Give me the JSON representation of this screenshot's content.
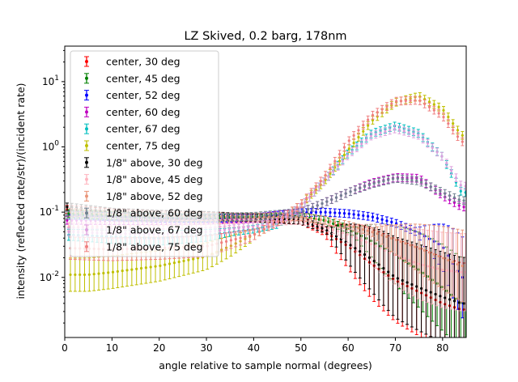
{
  "chart_data": {
    "type": "scatter",
    "title": "LZ Skived, 0.2 barg, 178nm",
    "xlabel": "angle relative to sample normal (degrees)",
    "ylabel": "intensity (reflected rate/str)/(incident rate)",
    "xlim": [
      0,
      85
    ],
    "ylim": [
      0.0012,
      35
    ],
    "yscale": "log",
    "x_ticks": [
      "0",
      "10",
      "20",
      "30",
      "40",
      "50",
      "60",
      "70",
      "80"
    ],
    "y_ticks": [
      "10^-2",
      "10^-1",
      "10^0",
      "10^1"
    ],
    "grid": false,
    "legend_position": "upper-left",
    "series": [
      {
        "name": "center, 30 deg",
        "color": "#ff0000",
        "points": [
          [
            1,
            0.11
          ],
          [
            10,
            0.098
          ],
          [
            20,
            0.092
          ],
          [
            30,
            0.088
          ],
          [
            40,
            0.08
          ],
          [
            45,
            0.08
          ],
          [
            50,
            0.075
          ],
          [
            55,
            0.05
          ],
          [
            60,
            0.03
          ],
          [
            65,
            0.016
          ],
          [
            70,
            0.009
          ],
          [
            75,
            0.006
          ],
          [
            80,
            0.004
          ],
          [
            84,
            0.0032
          ]
        ]
      },
      {
        "name": "center, 45 deg",
        "color": "#008000",
        "points": [
          [
            1,
            0.095
          ],
          [
            10,
            0.088
          ],
          [
            20,
            0.083
          ],
          [
            30,
            0.081
          ],
          [
            40,
            0.082
          ],
          [
            45,
            0.085
          ],
          [
            50,
            0.085
          ],
          [
            55,
            0.075
          ],
          [
            60,
            0.055
          ],
          [
            65,
            0.036
          ],
          [
            70,
            0.022
          ],
          [
            75,
            0.013
          ],
          [
            80,
            0.007
          ],
          [
            84,
            0.004
          ]
        ]
      },
      {
        "name": "center, 52 deg",
        "color": "#0000ff",
        "points": [
          [
            1,
            0.09
          ],
          [
            10,
            0.085
          ],
          [
            20,
            0.08
          ],
          [
            30,
            0.08
          ],
          [
            40,
            0.082
          ],
          [
            50,
            0.098
          ],
          [
            55,
            0.1
          ],
          [
            60,
            0.095
          ],
          [
            65,
            0.085
          ],
          [
            70,
            0.068
          ],
          [
            75,
            0.048
          ],
          [
            80,
            0.03
          ],
          [
            84,
            0.01
          ]
        ]
      },
      {
        "name": "center, 60 deg",
        "color": "#c000c0",
        "points": [
          [
            1,
            0.075
          ],
          [
            10,
            0.074
          ],
          [
            20,
            0.074
          ],
          [
            30,
            0.075
          ],
          [
            40,
            0.08
          ],
          [
            50,
            0.1
          ],
          [
            55,
            0.14
          ],
          [
            60,
            0.2
          ],
          [
            65,
            0.28
          ],
          [
            70,
            0.34
          ],
          [
            75,
            0.33
          ],
          [
            80,
            0.18
          ],
          [
            84,
            0.12
          ]
        ]
      },
      {
        "name": "center, 67 deg",
        "color": "#00bfbf",
        "points": [
          [
            1,
            0.045
          ],
          [
            10,
            0.042
          ],
          [
            20,
            0.04
          ],
          [
            30,
            0.044
          ],
          [
            40,
            0.055
          ],
          [
            45,
            0.065
          ],
          [
            50,
            0.12
          ],
          [
            55,
            0.3
          ],
          [
            60,
            0.8
          ],
          [
            65,
            1.6
          ],
          [
            70,
            2.1
          ],
          [
            75,
            1.6
          ],
          [
            80,
            0.7
          ],
          [
            84,
            0.2
          ]
        ]
      },
      {
        "name": "center, 75 deg",
        "color": "#bfbf00",
        "points": [
          [
            1,
            0.011
          ],
          [
            5,
            0.011
          ],
          [
            10,
            0.012
          ],
          [
            20,
            0.015
          ],
          [
            30,
            0.021
          ],
          [
            35,
            0.03
          ],
          [
            40,
            0.045
          ],
          [
            45,
            0.07
          ],
          [
            50,
            0.13
          ],
          [
            55,
            0.3
          ],
          [
            60,
            0.9
          ],
          [
            65,
            2.5
          ],
          [
            70,
            4.8
          ],
          [
            75,
            6
          ],
          [
            80,
            3.8
          ],
          [
            84,
            1.5
          ]
        ]
      },
      {
        "name": "1/8\" above, 30 deg",
        "color": "#000000",
        "points": [
          [
            1,
            0.12
          ],
          [
            10,
            0.1
          ],
          [
            20,
            0.093
          ],
          [
            30,
            0.089
          ],
          [
            40,
            0.082
          ],
          [
            45,
            0.078
          ],
          [
            50,
            0.075
          ],
          [
            55,
            0.055
          ],
          [
            60,
            0.033
          ],
          [
            65,
            0.019
          ],
          [
            70,
            0.01
          ],
          [
            75,
            0.007
          ],
          [
            80,
            0.005
          ],
          [
            84,
            0.004
          ]
        ]
      },
      {
        "name": "1/8\" above, 45 deg",
        "color": "#ffb6c1",
        "points": [
          [
            1,
            0.06
          ],
          [
            10,
            0.06
          ],
          [
            20,
            0.063
          ],
          [
            30,
            0.066
          ],
          [
            40,
            0.07
          ],
          [
            50,
            0.075
          ],
          [
            55,
            0.06
          ],
          [
            60,
            0.045
          ],
          [
            65,
            0.032
          ],
          [
            70,
            0.022
          ],
          [
            75,
            0.016
          ],
          [
            80,
            0.013
          ],
          [
            84,
            0.012
          ]
        ]
      },
      {
        "name": "1/8\" above, 52 deg",
        "color": "#e9967a",
        "points": [
          [
            1,
            0.1
          ],
          [
            10,
            0.093
          ],
          [
            20,
            0.088
          ],
          [
            30,
            0.085
          ],
          [
            40,
            0.084
          ],
          [
            50,
            0.085
          ],
          [
            55,
            0.075
          ],
          [
            60,
            0.063
          ],
          [
            65,
            0.05
          ],
          [
            70,
            0.038
          ],
          [
            75,
            0.028
          ],
          [
            80,
            0.02
          ],
          [
            84,
            0.015
          ]
        ]
      },
      {
        "name": "1/8\" above, 60 deg",
        "color": "#708090",
        "points": [
          [
            1,
            0.09
          ],
          [
            10,
            0.085
          ],
          [
            20,
            0.083
          ],
          [
            30,
            0.083
          ],
          [
            40,
            0.086
          ],
          [
            50,
            0.1
          ],
          [
            55,
            0.14
          ],
          [
            60,
            0.2
          ],
          [
            65,
            0.27
          ],
          [
            70,
            0.33
          ],
          [
            75,
            0.3
          ],
          [
            80,
            0.2
          ],
          [
            84,
            0.15
          ]
        ]
      },
      {
        "name": "1/8\" above, 67 deg",
        "color": "#dda0dd",
        "points": [
          [
            1,
            0.05
          ],
          [
            10,
            0.047
          ],
          [
            20,
            0.046
          ],
          [
            30,
            0.05
          ],
          [
            40,
            0.06
          ],
          [
            45,
            0.07
          ],
          [
            50,
            0.12
          ],
          [
            55,
            0.3
          ],
          [
            60,
            0.75
          ],
          [
            65,
            1.5
          ],
          [
            70,
            1.9
          ],
          [
            75,
            1.5
          ],
          [
            80,
            0.7
          ],
          [
            84,
            0.25
          ]
        ]
      },
      {
        "name": "1/8\" above, 75 deg",
        "color": "#f08080",
        "points": [
          [
            1,
            0.028
          ],
          [
            10,
            0.027
          ],
          [
            20,
            0.028
          ],
          [
            30,
            0.03
          ],
          [
            40,
            0.045
          ],
          [
            45,
            0.07
          ],
          [
            50,
            0.13
          ],
          [
            55,
            0.35
          ],
          [
            60,
            1.2
          ],
          [
            65,
            3
          ],
          [
            70,
            5
          ],
          [
            75,
            5.2
          ],
          [
            80,
            3
          ],
          [
            84,
            1.2
          ]
        ]
      }
    ]
  }
}
